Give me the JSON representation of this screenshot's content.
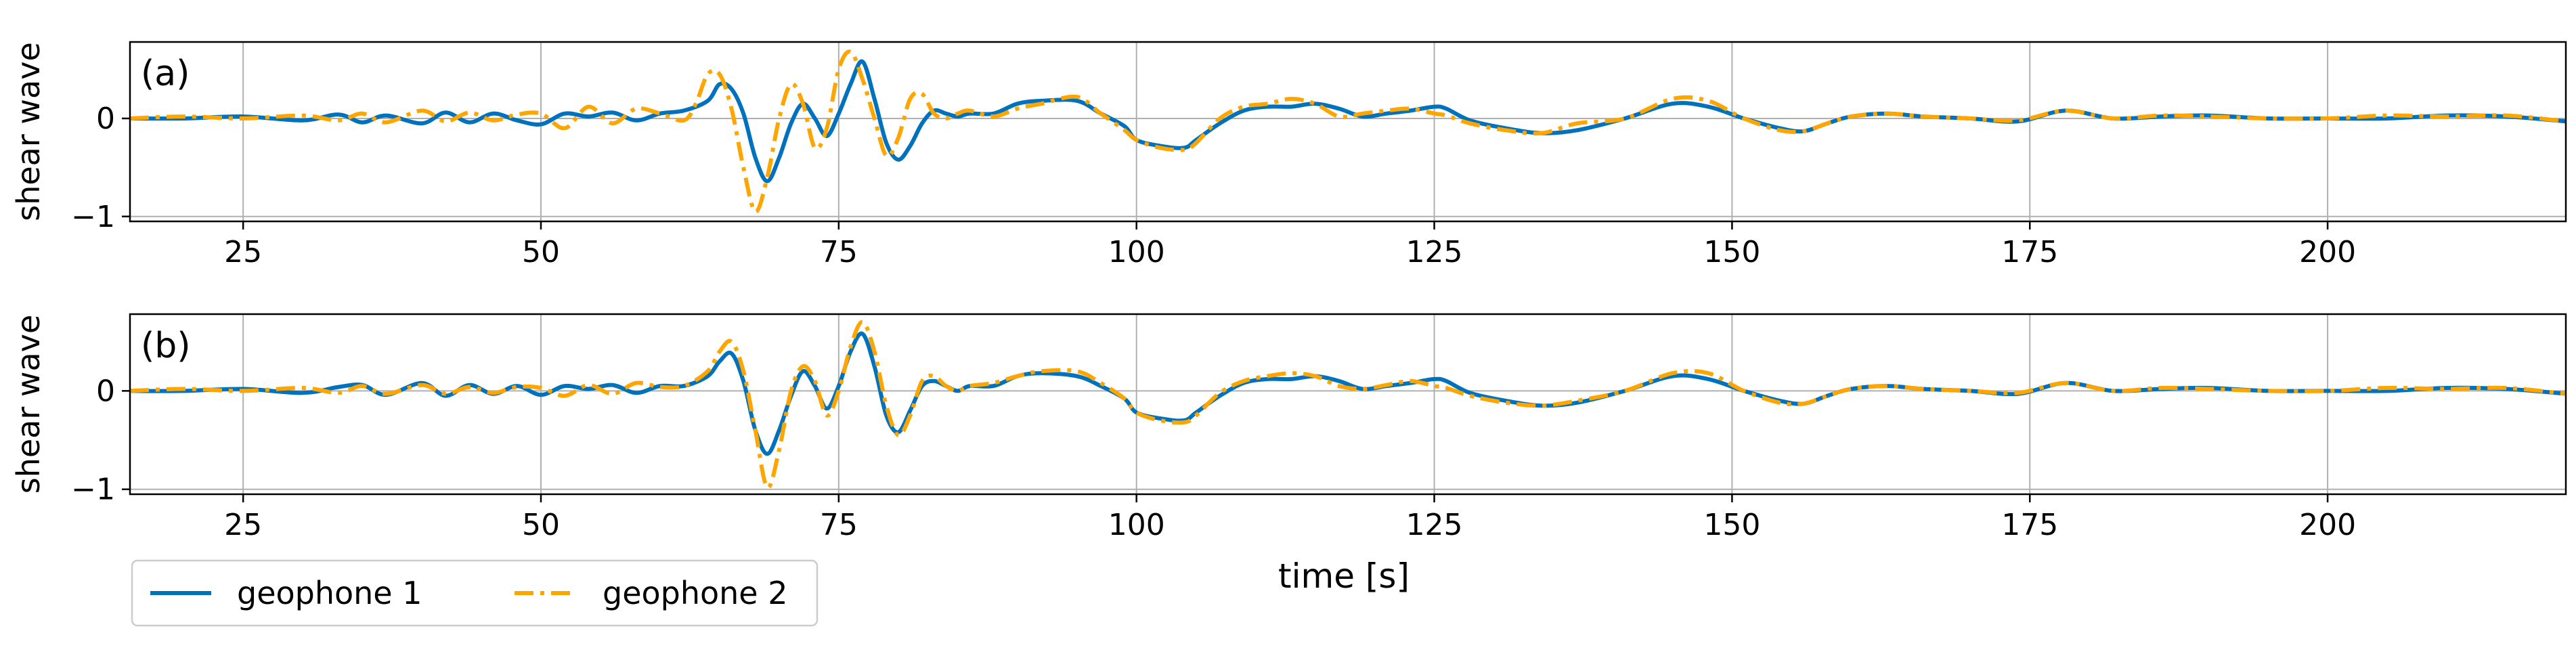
{
  "figure": {
    "xlabel": "time [s]",
    "legend": {
      "placement": "bottom-left",
      "entries": [
        {
          "label": "geophone 1",
          "color": "#0072BD",
          "style": "solid"
        },
        {
          "label": "geophone 2",
          "color": "#FFA500",
          "style": "dash-dot"
        }
      ]
    }
  },
  "chart_data": [
    {
      "type": "line",
      "panel_label": "(a)",
      "ylabel": "shear wave",
      "xlim": [
        15.5,
        220
      ],
      "ylim": [
        -1.05,
        0.78
      ],
      "xticks": [
        25,
        50,
        75,
        100,
        125,
        150,
        175,
        200
      ],
      "yticks": [
        -1,
        0
      ],
      "grid": true,
      "series": [
        {
          "name": "geophone 1",
          "color": "#0072BD",
          "style": "solid",
          "x": [
            15.5,
            20,
            25,
            30,
            33,
            35,
            37,
            40,
            42,
            44,
            46,
            48,
            50,
            52,
            54,
            56,
            58,
            60,
            62,
            64,
            65,
            66,
            67,
            68,
            69,
            70,
            71,
            72,
            73,
            74,
            75,
            76,
            77,
            78,
            79,
            80,
            81,
            82,
            83,
            84,
            85,
            86,
            88,
            90,
            92,
            95,
            97,
            99,
            100,
            102,
            104,
            105,
            107,
            109,
            111,
            113,
            115,
            117,
            119,
            121,
            123,
            125,
            126,
            128,
            131,
            134,
            137,
            141,
            145,
            148,
            151,
            154,
            156,
            158,
            160,
            163,
            166,
            170,
            174,
            178,
            182,
            186,
            190,
            195,
            200,
            205,
            210,
            215,
            220
          ],
          "y": [
            0,
            0,
            0.02,
            -0.02,
            0.04,
            -0.04,
            0.03,
            -0.05,
            0.06,
            -0.04,
            0.05,
            -0.02,
            -0.06,
            0.05,
            0.02,
            0.06,
            -0.02,
            0.05,
            0.08,
            0.18,
            0.35,
            0.3,
            0.05,
            -0.4,
            -0.64,
            -0.4,
            -0.05,
            0.15,
            0.0,
            -0.18,
            0.05,
            0.35,
            0.58,
            0.2,
            -0.25,
            -0.42,
            -0.28,
            -0.05,
            0.08,
            0.05,
            0.02,
            0.05,
            0.05,
            0.15,
            0.18,
            0.18,
            0.05,
            -0.08,
            -0.22,
            -0.28,
            -0.3,
            -0.22,
            -0.05,
            0.08,
            0.12,
            0.12,
            0.15,
            0.1,
            0.02,
            0.05,
            0.08,
            0.12,
            0.1,
            -0.02,
            -0.1,
            -0.15,
            -0.12,
            0.0,
            0.15,
            0.12,
            0.0,
            -0.1,
            -0.13,
            -0.05,
            0.02,
            0.05,
            0.02,
            0.0,
            -0.03,
            0.08,
            0.0,
            0.02,
            0.03,
            0.0,
            0.0,
            0.0,
            0.03,
            0.02,
            -0.03
          ]
        },
        {
          "name": "geophone 2",
          "color": "#FFA500",
          "style": "dash-dot",
          "x": [
            15.5,
            20,
            25,
            30,
            33,
            35,
            37,
            40,
            42,
            44,
            46,
            48,
            50,
            52,
            54,
            56,
            58,
            60,
            62,
            63,
            64,
            65,
            66,
            67,
            68,
            69,
            70,
            71,
            72,
            73,
            74,
            75,
            76,
            77,
            78,
            79,
            80,
            81,
            82,
            83,
            84,
            85,
            86,
            88,
            90,
            92,
            95,
            97,
            99,
            100,
            102,
            104,
            105,
            107,
            109,
            111,
            113,
            115,
            117,
            119,
            121,
            123,
            125,
            126,
            128,
            131,
            134,
            137,
            141,
            145,
            148,
            151,
            154,
            156,
            158,
            160,
            163,
            166,
            170,
            174,
            178,
            182,
            186,
            190,
            195,
            200,
            205,
            210,
            215,
            220
          ],
          "y": [
            0,
            0.02,
            0,
            0.03,
            -0.02,
            0.05,
            -0.04,
            0.08,
            -0.03,
            0.06,
            -0.02,
            0.04,
            0.05,
            -0.1,
            0.12,
            -0.05,
            0.1,
            0.05,
            -0.02,
            0.15,
            0.45,
            0.45,
            0.1,
            -0.5,
            -0.95,
            -0.6,
            0.0,
            0.35,
            0.15,
            -0.3,
            -0.1,
            0.5,
            0.68,
            0.4,
            0.0,
            -0.38,
            -0.2,
            0.2,
            0.25,
            0.05,
            0.0,
            0.05,
            0.08,
            0.02,
            0.1,
            0.15,
            0.22,
            0.05,
            -0.12,
            -0.22,
            -0.3,
            -0.32,
            -0.25,
            0.0,
            0.12,
            0.15,
            0.2,
            0.15,
            0.02,
            0.05,
            0.08,
            0.1,
            0.05,
            0.03,
            -0.05,
            -0.12,
            -0.15,
            -0.05,
            0.0,
            0.2,
            0.18,
            0.0,
            -0.12,
            -0.13,
            -0.05,
            0.02,
            0.05,
            0.02,
            0.0,
            -0.02,
            0.08,
            0.0,
            0.03,
            0.02,
            0.0,
            0.0,
            0.03,
            0.02,
            0.03,
            -0.03
          ]
        }
      ]
    },
    {
      "type": "line",
      "panel_label": "(b)",
      "ylabel": "shear wave",
      "xlim": [
        15.5,
        220
      ],
      "ylim": [
        -1.05,
        0.78
      ],
      "xticks": [
        25,
        50,
        75,
        100,
        125,
        150,
        175,
        200
      ],
      "yticks": [
        -1,
        0
      ],
      "grid": true,
      "series": [
        {
          "name": "geophone 1",
          "color": "#0072BD",
          "style": "solid",
          "x": [
            15.5,
            20,
            25,
            30,
            33,
            35,
            37,
            40,
            42,
            44,
            46,
            48,
            50,
            52,
            54,
            56,
            58,
            60,
            62,
            64,
            65,
            66,
            67,
            68,
            69,
            70,
            71,
            72,
            73,
            74,
            75,
            76,
            77,
            78,
            79,
            80,
            81,
            82,
            83,
            84,
            85,
            86,
            88,
            90,
            92,
            95,
            97,
            99,
            100,
            102,
            104,
            105,
            107,
            109,
            111,
            113,
            115,
            117,
            119,
            121,
            123,
            125,
            126,
            128,
            131,
            134,
            137,
            141,
            145,
            148,
            151,
            154,
            156,
            158,
            160,
            163,
            166,
            170,
            174,
            178,
            182,
            186,
            190,
            195,
            200,
            205,
            210,
            215,
            220
          ],
          "y": [
            0,
            0,
            0.02,
            -0.02,
            0.04,
            0.06,
            -0.04,
            0.08,
            -0.05,
            0.06,
            -0.03,
            0.05,
            -0.04,
            0.05,
            0.02,
            0.06,
            -0.02,
            0.05,
            0.05,
            0.15,
            0.3,
            0.38,
            0.1,
            -0.4,
            -0.64,
            -0.4,
            -0.05,
            0.2,
            0.05,
            -0.18,
            0.05,
            0.4,
            0.58,
            0.25,
            -0.25,
            -0.42,
            -0.2,
            0.05,
            0.1,
            0.05,
            0.0,
            0.05,
            0.05,
            0.15,
            0.18,
            0.15,
            0.05,
            -0.08,
            -0.22,
            -0.28,
            -0.3,
            -0.22,
            -0.05,
            0.08,
            0.12,
            0.12,
            0.15,
            0.1,
            0.02,
            0.05,
            0.08,
            0.12,
            0.1,
            -0.02,
            -0.1,
            -0.15,
            -0.12,
            0.0,
            0.15,
            0.12,
            0.0,
            -0.1,
            -0.13,
            -0.05,
            0.02,
            0.05,
            0.02,
            0.0,
            -0.03,
            0.08,
            0.0,
            0.02,
            0.03,
            0.0,
            0.0,
            0.0,
            0.03,
            0.02,
            -0.03
          ]
        },
        {
          "name": "geophone 2",
          "color": "#FFA500",
          "style": "dash-dot",
          "x": [
            15.5,
            20,
            25,
            30,
            33,
            35,
            37,
            40,
            42,
            44,
            46,
            48,
            50,
            52,
            54,
            56,
            58,
            60,
            62,
            64,
            65,
            66,
            67,
            68,
            69,
            70,
            71,
            72,
            73,
            74,
            75,
            76,
            77,
            78,
            79,
            80,
            81,
            82,
            83,
            84,
            85,
            86,
            88,
            90,
            92,
            95,
            97,
            99,
            100,
            102,
            104,
            105,
            107,
            109,
            111,
            113,
            115,
            117,
            119,
            121,
            123,
            125,
            126,
            128,
            131,
            134,
            137,
            141,
            145,
            148,
            151,
            154,
            156,
            158,
            160,
            163,
            166,
            170,
            174,
            178,
            182,
            186,
            190,
            195,
            200,
            205,
            210,
            215,
            220
          ],
          "y": [
            0,
            0.02,
            0,
            0.03,
            -0.02,
            0.05,
            -0.03,
            0.06,
            -0.03,
            0.04,
            -0.02,
            0.04,
            0.03,
            -0.05,
            0.06,
            -0.03,
            0.08,
            0.04,
            0.05,
            0.2,
            0.4,
            0.5,
            0.2,
            -0.4,
            -0.98,
            -0.6,
            0.0,
            0.25,
            0.1,
            -0.25,
            0.0,
            0.45,
            0.7,
            0.4,
            -0.15,
            -0.45,
            -0.25,
            0.1,
            0.15,
            0.05,
            0.0,
            0.05,
            0.08,
            0.15,
            0.2,
            0.2,
            0.08,
            -0.08,
            -0.22,
            -0.3,
            -0.32,
            -0.25,
            -0.02,
            0.1,
            0.15,
            0.18,
            0.15,
            0.05,
            0.02,
            0.06,
            0.1,
            0.05,
            0.03,
            -0.05,
            -0.12,
            -0.15,
            -0.1,
            0.0,
            0.18,
            0.18,
            0.0,
            -0.12,
            -0.13,
            -0.05,
            0.02,
            0.05,
            0.02,
            0.0,
            -0.02,
            0.08,
            0.0,
            0.03,
            0.02,
            0.0,
            0.0,
            0.03,
            0.02,
            0.03,
            -0.03
          ]
        }
      ]
    }
  ]
}
